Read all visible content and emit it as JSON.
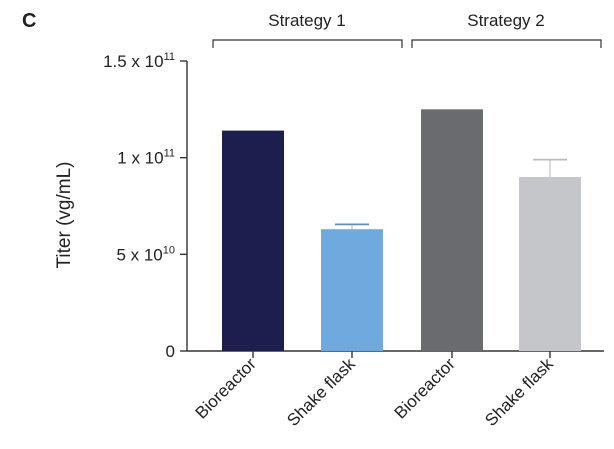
{
  "panel_label": "C",
  "groups": [
    "Strategy 1",
    "Strategy 2"
  ],
  "chart_data": {
    "type": "bar",
    "title": "",
    "xlabel": "",
    "ylabel": "Titer (vg/mL)",
    "ylim": [
      0,
      150000000000.0
    ],
    "ytick_values": [
      0,
      50000000000.0,
      100000000000.0,
      150000000000.0
    ],
    "ytick_labels": [
      {
        "mantissa": "0",
        "exp": ""
      },
      {
        "mantissa": "5 x 10",
        "exp": "10"
      },
      {
        "mantissa": "1 x 10",
        "exp": "11"
      },
      {
        "mantissa": "1.5 x 10",
        "exp": "11"
      }
    ],
    "categories": [
      "Bioreactor",
      "Shake flask",
      "Bioreactor",
      "Shake flask"
    ],
    "values": [
      114000000000.0,
      63000000000.0,
      125000000000.0,
      90000000000.0
    ],
    "error_upper": [
      0,
      2500000000.0,
      0,
      9000000000.0
    ],
    "colors": [
      "#1c1f4e",
      "#6fa9dd",
      "#6a6b6f",
      "#c5c6c9"
    ],
    "grid": false
  }
}
